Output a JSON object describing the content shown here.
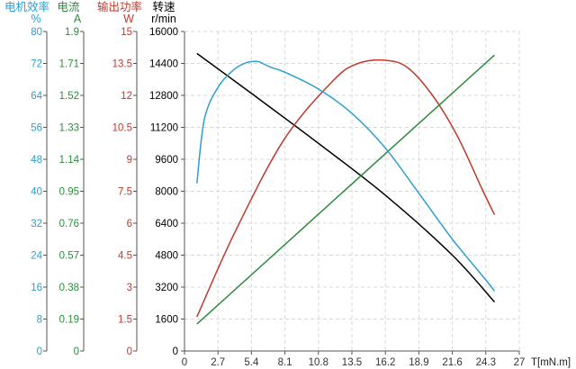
{
  "chart_data": {
    "type": "line",
    "x_axis": {
      "label": "T[mN.m]",
      "min": 0,
      "max": 27,
      "ticks": [
        "0",
        "2.7",
        "5.4",
        "8.1",
        "10.8",
        "13.5",
        "16.2",
        "18.9",
        "21.6",
        "24.3",
        "27"
      ]
    },
    "y_axes": [
      {
        "key": "speed",
        "title": "转速",
        "unit": "r/min",
        "min": 0,
        "max": 16000,
        "color": "#000000",
        "ticks": [
          "0",
          "1600",
          "3200",
          "4800",
          "6400",
          "8000",
          "9600",
          "11200",
          "12800",
          "14400",
          "16000"
        ]
      },
      {
        "key": "power",
        "title": "输出功率",
        "unit": "W",
        "min": 0,
        "max": 15,
        "color": "#c0392b",
        "ticks": [
          "0",
          "1.5",
          "3",
          "4.5",
          "6",
          "7.5",
          "9",
          "10.5",
          "12",
          "13.5",
          "15"
        ]
      },
      {
        "key": "current",
        "title": "电流",
        "unit": "A",
        "min": 0,
        "max": 1.9,
        "color": "#2e8b3e",
        "ticks": [
          "0",
          "0.19",
          "0.38",
          "0.57",
          "0.76",
          "0.95",
          "1.14",
          "1.33",
          "1.52",
          "1.71",
          "1.9"
        ]
      },
      {
        "key": "efficiency",
        "title": "电机效率",
        "unit": "%",
        "min": 0,
        "max": 80,
        "color": "#2a9fd0",
        "ticks": [
          "0",
          "8",
          "16",
          "24",
          "32",
          "40",
          "48",
          "56",
          "64",
          "72",
          "80"
        ]
      }
    ],
    "series": [
      {
        "key": "speed",
        "axis": "speed",
        "color": "#000000",
        "x": [
          1,
          5.4,
          10.8,
          16.2,
          21.6,
          25
        ],
        "y": [
          14900,
          12900,
          10400,
          7800,
          4800,
          2450
        ]
      },
      {
        "key": "power",
        "axis": "power",
        "color": "#c0392b",
        "x": [
          1,
          4,
          8,
          12,
          14,
          16.2,
          18,
          20,
          22,
          24,
          25
        ],
        "y": [
          1.6,
          5.5,
          9.9,
          12.7,
          13.5,
          13.65,
          13.3,
          12.0,
          10.1,
          7.6,
          6.4
        ]
      },
      {
        "key": "current",
        "axis": "current",
        "color": "#2e8b3e",
        "x": [
          1,
          25
        ],
        "y": [
          0.16,
          1.76
        ]
      },
      {
        "key": "efficiency",
        "axis": "efficiency",
        "color": "#2a9fd0",
        "x": [
          1,
          1.6,
          2.7,
          4,
          5,
          5.6,
          6,
          7,
          8.1,
          10.8,
          13.5,
          16.2,
          18.9,
          21.6,
          24.3,
          25
        ],
        "y": [
          42,
          58,
          66,
          70.5,
          72.2,
          72.5,
          72.4,
          71,
          69.8,
          65.6,
          59.5,
          50.8,
          39.5,
          28,
          17.8,
          15
        ]
      }
    ],
    "grid": true
  }
}
